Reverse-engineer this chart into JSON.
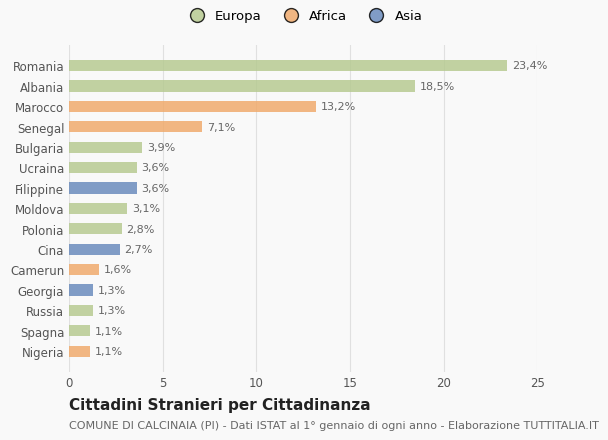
{
  "categories": [
    "Romania",
    "Albania",
    "Marocco",
    "Senegal",
    "Bulgaria",
    "Ucraina",
    "Filippine",
    "Moldova",
    "Polonia",
    "Cina",
    "Camerun",
    "Georgia",
    "Russia",
    "Spagna",
    "Nigeria"
  ],
  "values": [
    23.4,
    18.5,
    13.2,
    7.1,
    3.9,
    3.6,
    3.6,
    3.1,
    2.8,
    2.7,
    1.6,
    1.3,
    1.3,
    1.1,
    1.1
  ],
  "labels": [
    "23,4%",
    "18,5%",
    "13,2%",
    "7,1%",
    "3,9%",
    "3,6%",
    "3,6%",
    "3,1%",
    "2,8%",
    "2,7%",
    "1,6%",
    "1,3%",
    "1,3%",
    "1,1%",
    "1,1%"
  ],
  "continent": [
    "Europa",
    "Europa",
    "Africa",
    "Africa",
    "Europa",
    "Europa",
    "Asia",
    "Europa",
    "Europa",
    "Asia",
    "Africa",
    "Asia",
    "Europa",
    "Europa",
    "Africa"
  ],
  "colors": {
    "Europa": "#b5c98e",
    "Africa": "#f0a868",
    "Asia": "#6688bb"
  },
  "title": "Cittadini Stranieri per Cittadinanza",
  "subtitle": "COMUNE DI CALCINAIA (PI) - Dati ISTAT al 1° gennaio di ogni anno - Elaborazione TUTTITALIA.IT",
  "xlim": [
    0,
    25
  ],
  "xticks": [
    0,
    5,
    10,
    15,
    20,
    25
  ],
  "background_color": "#f9f9f9",
  "grid_color": "#e0e0e0",
  "bar_height": 0.55,
  "bar_alpha": 0.82,
  "title_fontsize": 11,
  "subtitle_fontsize": 8,
  "label_fontsize": 8,
  "tick_fontsize": 8.5,
  "legend_fontsize": 9.5
}
